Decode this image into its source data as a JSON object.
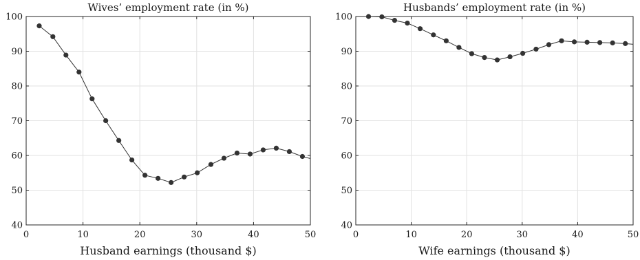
{
  "chart_data": [
    {
      "type": "line",
      "title": "Wives’ employment rate (in %)",
      "xlabel": "Husband earnings (thousand $)",
      "ylabel": "",
      "xlim": [
        0,
        50
      ],
      "ylim": [
        40,
        100
      ],
      "xticks": [
        "0",
        "10",
        "20",
        "30",
        "40",
        "50"
      ],
      "yticks": [
        "40",
        "50",
        "60",
        "70",
        "80",
        "90",
        "100"
      ],
      "grid": true,
      "marker_color": "#333333",
      "series": [
        {
          "x": [
            2.3,
            4.7,
            7.0,
            9.3,
            11.6,
            14.0,
            16.3,
            18.6,
            20.9,
            23.2,
            25.5,
            27.8,
            30.1,
            32.5,
            34.8,
            37.1,
            39.4,
            41.7,
            44.0,
            46.3,
            48.6,
            50.0
          ],
          "y": [
            97.3,
            94.2,
            88.9,
            84.0,
            76.3,
            70.0,
            64.3,
            58.7,
            54.3,
            53.4,
            52.2,
            53.8,
            55.0,
            57.4,
            59.2,
            60.7,
            60.4,
            61.6,
            62.1,
            61.1,
            59.7,
            59.1
          ]
        }
      ]
    },
    {
      "type": "line",
      "title": "Husbands’ employment rate (in %)",
      "xlabel": "Wife earnings (thousand $)",
      "ylabel": "",
      "xlim": [
        0,
        50
      ],
      "ylim": [
        40,
        100
      ],
      "xticks": [
        "0",
        "10",
        "20",
        "30",
        "40",
        "50"
      ],
      "yticks": [
        "40",
        "50",
        "60",
        "70",
        "80",
        "90",
        "100"
      ],
      "grid": true,
      "marker_color": "#333333",
      "series": [
        {
          "x": [
            2.3,
            4.7,
            7.0,
            9.3,
            11.6,
            14.0,
            16.3,
            18.6,
            20.9,
            23.2,
            25.5,
            27.8,
            30.1,
            32.5,
            34.8,
            37.1,
            39.4,
            41.7,
            44.0,
            46.3,
            48.6,
            50.0
          ],
          "y": [
            100.0,
            99.9,
            98.9,
            98.1,
            96.5,
            94.7,
            93.0,
            91.1,
            89.3,
            88.2,
            87.5,
            88.4,
            89.4,
            90.6,
            91.9,
            93.0,
            92.7,
            92.6,
            92.5,
            92.4,
            92.2,
            92.0
          ]
        }
      ]
    }
  ]
}
